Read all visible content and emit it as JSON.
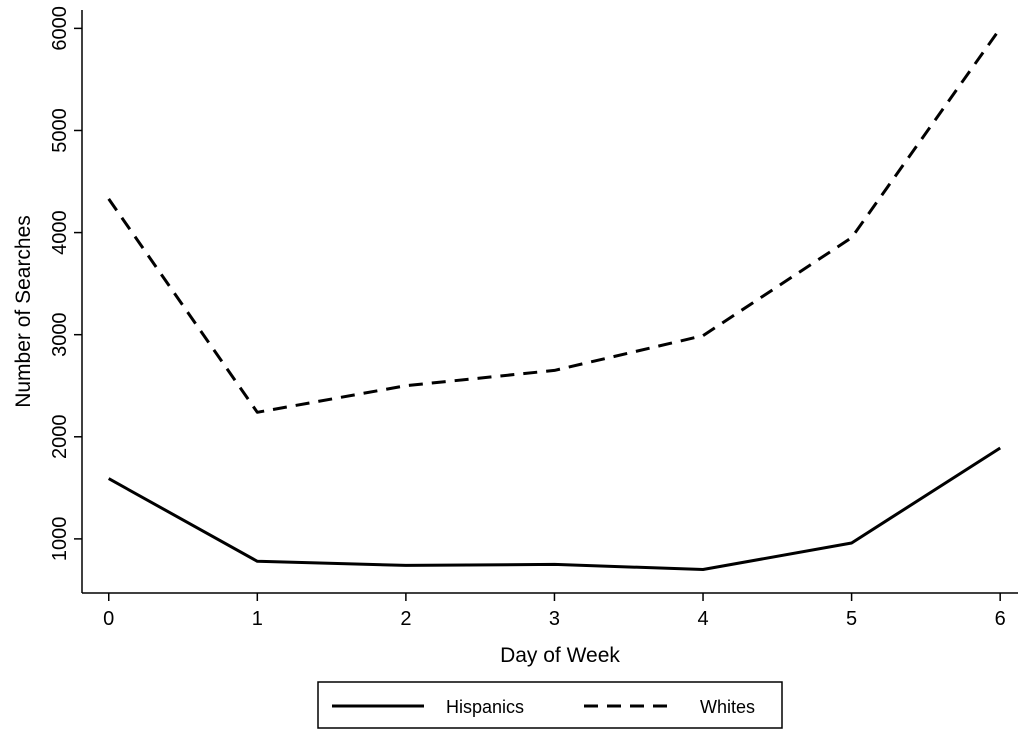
{
  "chart_data": {
    "type": "line",
    "xlabel": "Day of Week",
    "ylabel": "Number of Searches",
    "x": [
      0,
      1,
      2,
      3,
      4,
      5,
      6
    ],
    "xticks": [
      0,
      1,
      2,
      3,
      4,
      5,
      6
    ],
    "yticks": [
      1000,
      2000,
      3000,
      4000,
      5000,
      6000
    ],
    "xlim": [
      -0.18,
      6.12
    ],
    "ylim": [
      470,
      6180
    ],
    "grid": false,
    "legend_position": "bottom",
    "series": [
      {
        "name": "Hispanics",
        "style": "solid",
        "color": "#000000",
        "values": [
          1590,
          780,
          740,
          750,
          700,
          960,
          1890
        ]
      },
      {
        "name": "Whites",
        "style": "dashed",
        "color": "#000000",
        "values": [
          4330,
          2240,
          2500,
          2650,
          2990,
          3950,
          6000
        ]
      }
    ]
  }
}
